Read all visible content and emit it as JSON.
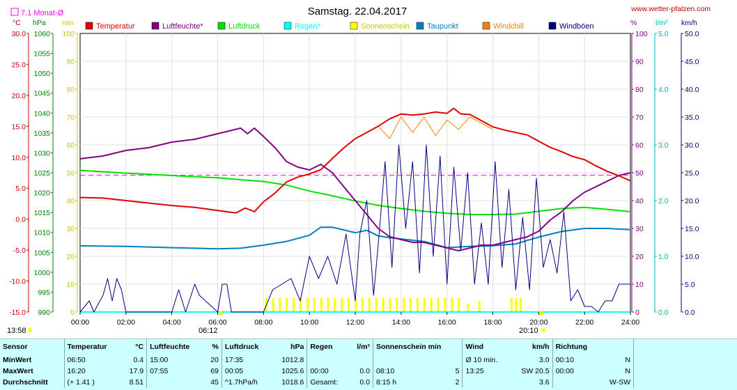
{
  "header": {
    "title": "Samstag. 22.04.2017",
    "website": "www.wetter-pfalzen.com",
    "monthly_avg_label": "7.1 Monat-Ø",
    "sunrise_label": "06:12",
    "sunset_label": "20:10",
    "start_time_label": "13:58"
  },
  "legend": [
    {
      "name": "Temperatur",
      "color": "#e00000"
    },
    {
      "name": "Luftfeuchte*",
      "color": "#800080"
    },
    {
      "name": "Luftdruck",
      "color": "#00e000"
    },
    {
      "name": "Regen*",
      "color": "#00ffff"
    },
    {
      "name": "Sonnenschein",
      "color": "#ffff00"
    },
    {
      "name": "Taupunkt",
      "color": "#0080c0"
    },
    {
      "name": "Windchill",
      "color": "#ff8000"
    },
    {
      "name": "Windböen",
      "color": "#000080"
    }
  ],
  "axes": {
    "temp_unit": "°C",
    "hpa_unit": "hPa",
    "min_unit": "min",
    "pct_unit": "%",
    "rain_unit": "l/m²",
    "wind_unit": "km/h",
    "temp_ticks": [
      "30.0",
      "25.0",
      "20.0",
      "15.0",
      "10.0",
      "5.0",
      "0.0",
      "-5.0",
      "-10.0",
      "-15.0"
    ],
    "hpa_ticks": [
      "1060",
      "1055",
      "1050",
      "1045",
      "1040",
      "1035",
      "1030",
      "1025",
      "1020",
      "1015",
      "1010",
      "1005",
      "1000",
      "995",
      "990"
    ],
    "min_ticks": [
      "100",
      "90",
      "80",
      "70",
      "60",
      "50",
      "40",
      "30",
      "20",
      "10",
      "0"
    ],
    "pct_ticks": [
      "100",
      "90",
      "80",
      "70",
      "60",
      "50",
      "40",
      "30",
      "20",
      "10",
      "0"
    ],
    "rain_ticks": [
      "5.0",
      "4.0",
      "3.0",
      "2.0",
      "1.0",
      "0.0"
    ],
    "wind_ticks": [
      "50.0",
      "45.0",
      "40.0",
      "35.0",
      "30.0",
      "25.0",
      "20.0",
      "15.0",
      "10.0",
      "5.0",
      "0.0"
    ],
    "x_ticks": [
      "00:00",
      "02:00",
      "04:00",
      "06:00",
      "08:00",
      "10:00",
      "12:00",
      "14:00",
      "16:00",
      "18:00",
      "20:00",
      "22:00",
      "24:00"
    ]
  },
  "chart_data": {
    "type": "line",
    "title": "Samstag. 22.04.2017",
    "x_range_hours": [
      0,
      24
    ],
    "monthly_avg_temp": 7.1,
    "series": [
      {
        "name": "Temperatur",
        "unit": "°C",
        "x": [
          0,
          1,
          2,
          3,
          4,
          5,
          6,
          6.8,
          7.2,
          7.6,
          8,
          8.5,
          9,
          9.5,
          10,
          10.5,
          11,
          11.5,
          12,
          12.5,
          13,
          13.5,
          14,
          14.5,
          15,
          15.5,
          16,
          16.3,
          16.6,
          17,
          17.5,
          18,
          18.5,
          19,
          19.5,
          20,
          20.5,
          21,
          21.5,
          22,
          22.5,
          23,
          23.5,
          24
        ],
        "y": [
          3.5,
          3.4,
          3.0,
          2.6,
          2.2,
          1.9,
          1.4,
          1.0,
          1.8,
          1.2,
          2.8,
          4.2,
          6.0,
          6.8,
          7.3,
          8.0,
          9.8,
          11.5,
          13.0,
          14.0,
          15.0,
          16.2,
          17.0,
          16.8,
          17.0,
          17.3,
          17.1,
          17.9,
          17.0,
          16.9,
          15.9,
          14.9,
          14.4,
          14.0,
          13.6,
          12.6,
          11.6,
          10.9,
          10.1,
          9.6,
          8.6,
          7.7,
          7.0,
          6.2
        ]
      },
      {
        "name": "Luftfeuchte*",
        "unit": "%",
        "x": [
          0,
          1,
          2,
          3,
          4,
          5,
          6,
          6.5,
          7,
          7.3,
          7.6,
          8,
          8.5,
          9,
          9.5,
          10,
          10.5,
          11,
          11.5,
          12,
          12.5,
          13,
          13.5,
          14,
          14.5,
          15,
          15.5,
          16,
          16.5,
          17,
          17.5,
          18,
          18.5,
          19,
          19.5,
          20,
          20.5,
          21,
          21.5,
          22,
          22.5,
          23,
          23.5,
          24
        ],
        "y": [
          55,
          56,
          58,
          59,
          61,
          62,
          64,
          65,
          66,
          64,
          66,
          63,
          59,
          54,
          52,
          51,
          53,
          50,
          45,
          40,
          35,
          30,
          27,
          26,
          25,
          25,
          24,
          23,
          22,
          23,
          24,
          24,
          25,
          26,
          27,
          29,
          33,
          36,
          40,
          43,
          45,
          47,
          49,
          50
        ]
      },
      {
        "name": "Luftdruck",
        "unit": "hPa",
        "x": [
          0,
          2,
          4,
          6,
          8,
          9,
          10,
          11,
          12,
          13,
          14,
          15,
          16,
          17,
          18,
          19,
          20,
          21,
          22,
          23,
          24
        ],
        "y": [
          1025.6,
          1024.9,
          1024.3,
          1023.7,
          1022.8,
          1021.9,
          1020.4,
          1019.2,
          1017.9,
          1016.8,
          1016.0,
          1015.3,
          1014.8,
          1014.5,
          1014.5,
          1014.6,
          1015.3,
          1016.0,
          1016.3,
          1015.8,
          1015.2
        ]
      },
      {
        "name": "Taupunkt",
        "unit": "°C",
        "x": [
          0,
          2,
          4,
          6,
          7,
          8,
          9,
          10,
          10.5,
          11,
          12,
          12.5,
          13,
          13.5,
          14,
          15,
          16,
          17,
          18,
          19,
          20,
          21,
          22,
          23,
          24
        ],
        "y": [
          -4.3,
          -4.4,
          -4.6,
          -4.8,
          -4.7,
          -4.2,
          -3.6,
          -2.6,
          -1.3,
          -1.3,
          -2.2,
          -1.8,
          -2.7,
          -3.0,
          -3.2,
          -3.6,
          -4.6,
          -4.4,
          -4.3,
          -4.0,
          -2.9,
          -2.0,
          -1.5,
          -1.5,
          -1.7
        ]
      },
      {
        "name": "Windchill",
        "unit": "°C",
        "x": [
          13,
          13.5,
          14,
          14.5,
          15,
          15.5,
          16,
          16.5,
          17,
          17.5,
          18
        ],
        "y": [
          15.0,
          13.0,
          16.5,
          14.0,
          16.5,
          13.5,
          16.0,
          14.5,
          16.5,
          15.5,
          14.5
        ]
      },
      {
        "name": "Windböen",
        "unit": "km/h",
        "x": [
          0,
          0.4,
          0.6,
          1,
          1.2,
          1.4,
          1.6,
          1.8,
          2,
          4,
          4.3,
          4.6,
          5,
          5.2,
          6,
          6.2,
          6.4,
          6.6,
          8,
          8.4,
          8.8,
          9.2,
          9.6,
          10,
          10.4,
          10.8,
          11.2,
          11.6,
          12,
          12.2,
          12.5,
          12.8,
          13,
          13.3,
          13.6,
          13.9,
          14.2,
          14.5,
          14.8,
          15.1,
          15.4,
          15.7,
          16,
          16.3,
          16.6,
          16.9,
          17.2,
          17.5,
          17.8,
          18.1,
          18.4,
          18.7,
          19,
          19.3,
          19.6,
          19.9,
          20.2,
          20.5,
          20.8,
          21.1,
          21.4,
          21.7,
          22,
          22.3,
          22.6,
          22.9,
          23.2,
          23.5,
          23.8,
          24
        ],
        "y": [
          0,
          2,
          0,
          3,
          6,
          2,
          6,
          4,
          0,
          0,
          4,
          0,
          5,
          3,
          0,
          5,
          5,
          0,
          0,
          4,
          5,
          6,
          2,
          10,
          6,
          10,
          5,
          14,
          2,
          14,
          20,
          3,
          12,
          27,
          8,
          30,
          15,
          27,
          7,
          30,
          10,
          28,
          5,
          26,
          11,
          25,
          5,
          16,
          5,
          27,
          8,
          22,
          4,
          17,
          4,
          24,
          8,
          13,
          7,
          18,
          2,
          4,
          1,
          1,
          0,
          2,
          2,
          5,
          5,
          5
        ]
      },
      {
        "name": "Sonnenschein",
        "unit": "min",
        "x": [
          8.1,
          8.4,
          8.7,
          9.0,
          9.3,
          9.6,
          9.9,
          10.2,
          10.5,
          10.8,
          11.1,
          11.4,
          11.7,
          12.0,
          12.3,
          12.6,
          12.9,
          13.2,
          13.5,
          13.8,
          14.1,
          14.4,
          14.7,
          15.0,
          15.3,
          15.6,
          15.9,
          16.2,
          16.5,
          16.9,
          17.4,
          18.8,
          19.0,
          19.2
        ],
        "y": [
          5,
          5,
          5,
          5,
          5,
          5,
          5,
          5,
          5,
          5,
          5,
          5,
          5,
          5,
          5,
          5,
          5,
          5,
          5,
          5,
          5,
          5,
          5,
          5,
          5,
          5,
          5,
          5,
          5,
          3,
          4,
          5,
          5,
          5
        ]
      },
      {
        "name": "Regen*",
        "unit": "l/m²",
        "x": [
          0,
          24
        ],
        "y": [
          0,
          0
        ]
      }
    ]
  },
  "stats": {
    "headers": {
      "sensor": "Sensor",
      "temp": "Temperatur",
      "temp_unit": "°C",
      "hum": "Luftfeuchte",
      "hum_unit": "%",
      "press": "Luftdruck",
      "press_unit": "hPa",
      "rain": "Regen",
      "rain_unit": "l/m²",
      "sun": "Sonnenschein min",
      "wind": "Wind",
      "wind_unit": "km/h",
      "dir": "Richtung"
    },
    "rows": [
      {
        "label": "MinWert",
        "temp_time": "06:50",
        "temp_val": "0.4",
        "hum_time": "15:00",
        "hum_val": "20",
        "press_time": "17:35",
        "press_val": "1012.8",
        "rain_time": "",
        "rain_val": "",
        "sun_time": "",
        "sun_val": "",
        "wind_time": "Ø 10 min.",
        "wind_val": "3.0",
        "dir_time": "00:10",
        "dir_val": "N"
      },
      {
        "label": "MaxWert",
        "temp_time": "16:20",
        "temp_val": "17.9",
        "hum_time": "07:55",
        "hum_val": "69",
        "press_time": "00:05",
        "press_val": "1025.6",
        "rain_time": "00:00",
        "rain_val": "0.0",
        "sun_time": "08:10",
        "sun_val": "5",
        "wind_time": "13:25",
        "wind_val": "SW 20.5",
        "dir_time": "00:00",
        "dir_val": "N"
      },
      {
        "label": "Durchschnitt",
        "temp_time": "(+ 1.41 )",
        "temp_val": "8.51",
        "hum_time": "",
        "hum_val": "45",
        "press_time": "^1.7hPa/h",
        "press_val": "1018.6",
        "rain_time": "Gesamt:",
        "rain_val": "0.0",
        "sun_time": "8:15 h",
        "sun_val": "2",
        "wind_time": "",
        "wind_val": "3.6",
        "dir_time": "",
        "dir_val": "W-SW"
      }
    ]
  }
}
